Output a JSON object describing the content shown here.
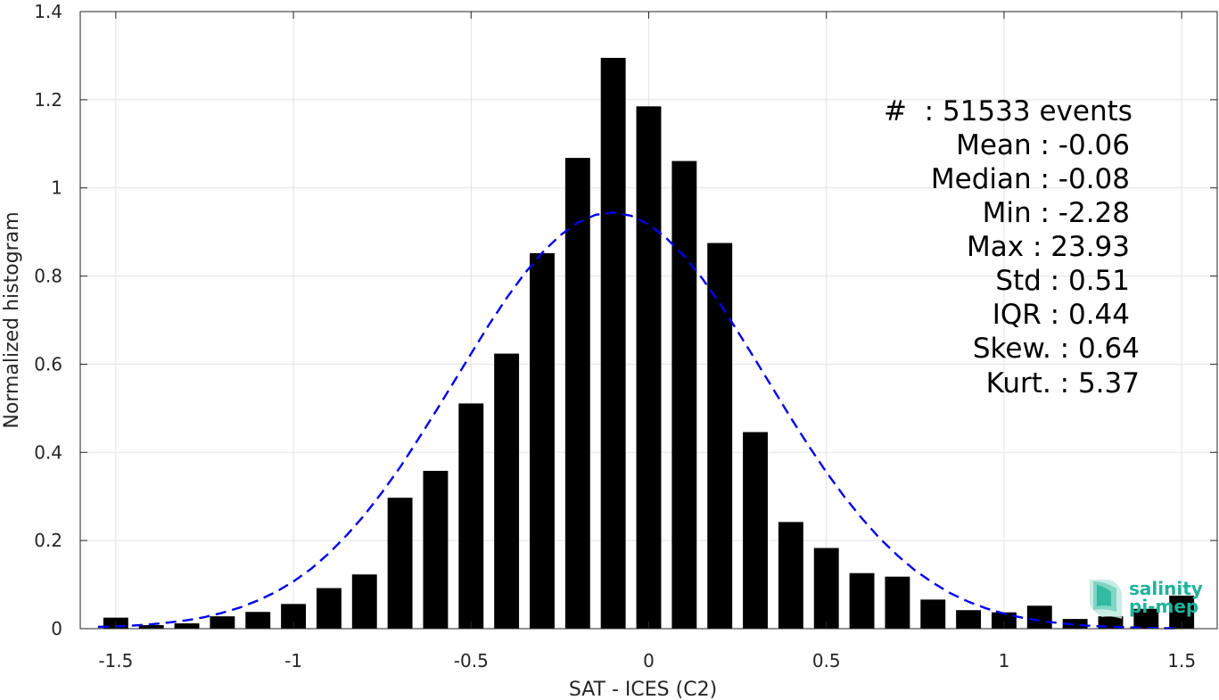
{
  "chart_data": {
    "type": "bar",
    "xlabel": "SAT - ICES (C2)",
    "ylabel": "Normalized histogram",
    "xlim": [
      -1.6,
      1.6
    ],
    "ylim": [
      0,
      1.4
    ],
    "xticks": [
      -1.5,
      -1,
      -0.5,
      0,
      0.5,
      1,
      1.5
    ],
    "xtick_labels": [
      "-1.5",
      "-1",
      "-0.5",
      "0",
      "0.5",
      "1",
      "1.5"
    ],
    "yticks": [
      0,
      0.2,
      0.4,
      0.6,
      0.8,
      1,
      1.2,
      1.4
    ],
    "ytick_labels": [
      "0",
      "0.2",
      "0.4",
      "0.6",
      "0.8",
      "1",
      "1.2",
      "1.4"
    ],
    "grid": true,
    "bar_color": "#000000",
    "fit_color": "#0000ee",
    "bin_width": 0.1,
    "x": [
      -1.5,
      -1.4,
      -1.3,
      -1.2,
      -1.1,
      -1.0,
      -0.9,
      -0.8,
      -0.7,
      -0.6,
      -0.5,
      -0.4,
      -0.3,
      -0.2,
      -0.1,
      0.0,
      0.1,
      0.2,
      0.3,
      0.4,
      0.5,
      0.6,
      0.7,
      0.8,
      0.9,
      1.0,
      1.1,
      1.2,
      1.3,
      1.4,
      1.5
    ],
    "values": [
      0.025,
      0.008,
      0.012,
      0.028,
      0.038,
      0.056,
      0.092,
      0.123,
      0.297,
      0.358,
      0.511,
      0.624,
      0.852,
      1.068,
      1.295,
      1.185,
      1.061,
      0.875,
      0.446,
      0.242,
      0.183,
      0.126,
      0.118,
      0.066,
      0.042,
      0.037,
      0.052,
      0.022,
      0.028,
      0.045,
      0.075
    ],
    "fit_curve": {
      "style": "dashed",
      "x": [
        -1.55,
        -1.5,
        -1.45,
        -1.4,
        -1.35,
        -1.3,
        -1.25,
        -1.2,
        -1.15,
        -1.1,
        -1.05,
        -1.0,
        -0.95,
        -0.9,
        -0.85,
        -0.8,
        -0.75,
        -0.7,
        -0.65,
        -0.6,
        -0.55,
        -0.5,
        -0.45,
        -0.4,
        -0.35,
        -0.3,
        -0.25,
        -0.2,
        -0.15,
        -0.1,
        -0.05,
        0.0,
        0.05,
        0.1,
        0.15,
        0.2,
        0.25,
        0.3,
        0.35,
        0.4,
        0.45,
        0.5,
        0.55,
        0.6,
        0.65,
        0.7,
        0.75,
        0.8,
        0.85,
        0.9,
        0.95,
        1.0,
        1.05,
        1.1,
        1.15,
        1.2,
        1.25,
        1.3,
        1.35,
        1.4,
        1.45,
        1.5
      ],
      "y": [
        0.004,
        0.005,
        0.007,
        0.01,
        0.014,
        0.019,
        0.026,
        0.036,
        0.048,
        0.064,
        0.083,
        0.107,
        0.136,
        0.171,
        0.212,
        0.258,
        0.31,
        0.366,
        0.428,
        0.492,
        0.558,
        0.624,
        0.689,
        0.75,
        0.805,
        0.853,
        0.892,
        0.921,
        0.939,
        0.944,
        0.937,
        0.917,
        0.886,
        0.845,
        0.795,
        0.738,
        0.675,
        0.61,
        0.544,
        0.478,
        0.415,
        0.355,
        0.3,
        0.25,
        0.205,
        0.166,
        0.132,
        0.104,
        0.08,
        0.061,
        0.046,
        0.034,
        0.025,
        0.018,
        0.013,
        0.009,
        0.006,
        0.004,
        0.003,
        0.002,
        0.001,
        0.001
      ]
    },
    "stats": [
      "#  : 51533 events",
      "Mean : -0.06",
      "Median : -0.08",
      "Min : -2.28",
      "Max : 23.93",
      "Std : 0.51",
      "IQR : 0.44",
      "Skew. : 0.64",
      "Kurt. : 5.37"
    ]
  },
  "logo": {
    "line1": "salinity",
    "line2": "pi-mep",
    "color": "#1fb39a"
  }
}
